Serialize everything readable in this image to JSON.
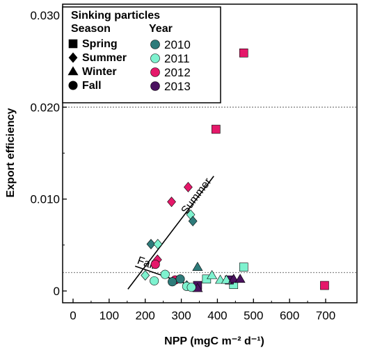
{
  "chart_data": {
    "type": "scatter",
    "xlabel": "NPP (mgC m⁻² d⁻¹)",
    "ylabel": "Export efficiency",
    "xlim": [
      0,
      750
    ],
    "ylim": [
      0,
      0.031
    ],
    "x_ticks": [
      0,
      100,
      200,
      300,
      400,
      500,
      600,
      700
    ],
    "y_ticks": [
      0,
      0.01,
      0.02,
      0.03
    ],
    "x_tick_labels": [
      "0",
      "100",
      "200",
      "300",
      "400",
      "500",
      "600",
      "700"
    ],
    "y_tick_labels": [
      "0",
      "0.010",
      "0.020",
      "0.030"
    ],
    "reference_lines": [
      0.02,
      0.002
    ],
    "legend": {
      "title": "Sinking particles",
      "season_header": "Season",
      "year_header": "Year",
      "seasons": [
        {
          "label": "Spring",
          "marker": "square"
        },
        {
          "label": "Summer",
          "marker": "diamond"
        },
        {
          "label": "Winter",
          "marker": "triangle"
        },
        {
          "label": "Fall",
          "marker": "circle"
        }
      ],
      "years": [
        {
          "label": "2010",
          "color": "#2e7b7a"
        },
        {
          "label": "2011",
          "color": "#7ef2cf"
        },
        {
          "label": "2012",
          "color": "#e5186a"
        },
        {
          "label": "2013",
          "color": "#4b1260"
        }
      ],
      "placement": "top-left"
    },
    "fit_lines": [
      {
        "label": "Summer",
        "from": [
          152,
          0.0002
        ],
        "to": [
          390,
          0.0125
        ]
      },
      {
        "label": "Fall",
        "from": [
          172,
          0.0027
        ],
        "to": [
          350,
          0.0003
        ]
      }
    ],
    "points": [
      {
        "x": 473,
        "y": 0.0259,
        "season": "Spring",
        "year": "2012"
      },
      {
        "x": 396,
        "y": 0.0176,
        "season": "Spring",
        "year": "2012"
      },
      {
        "x": 697,
        "y": 0.0006,
        "season": "Spring",
        "year": "2012"
      },
      {
        "x": 473,
        "y": 0.0026,
        "season": "Spring",
        "year": "2011"
      },
      {
        "x": 370,
        "y": 0.0013,
        "season": "Spring",
        "year": "2011"
      },
      {
        "x": 445,
        "y": 0.0007,
        "season": "Spring",
        "year": "2011"
      },
      {
        "x": 433,
        "y": 0.0012,
        "season": "Spring",
        "year": "2013"
      },
      {
        "x": 345,
        "y": 0.0006,
        "season": "Spring",
        "year": "2013"
      },
      {
        "x": 319,
        "y": 0.0113,
        "season": "Summer",
        "year": "2012"
      },
      {
        "x": 273,
        "y": 0.0097,
        "season": "Summer",
        "year": "2012"
      },
      {
        "x": 234,
        "y": 0.0034,
        "season": "Summer",
        "year": "2012"
      },
      {
        "x": 326,
        "y": 0.0083,
        "season": "Summer",
        "year": "2011"
      },
      {
        "x": 332,
        "y": 0.0076,
        "season": "Summer",
        "year": "2010"
      },
      {
        "x": 216,
        "y": 0.0051,
        "season": "Summer",
        "year": "2010"
      },
      {
        "x": 235,
        "y": 0.0051,
        "season": "Summer",
        "year": "2011"
      },
      {
        "x": 200,
        "y": 0.0017,
        "season": "Summer",
        "year": "2011"
      },
      {
        "x": 315,
        "y": 0.0006,
        "season": "Summer",
        "year": "2010"
      },
      {
        "x": 345,
        "y": 0.0026,
        "season": "Winter",
        "year": "2010"
      },
      {
        "x": 385,
        "y": 0.0017,
        "season": "Winter",
        "year": "2011"
      },
      {
        "x": 408,
        "y": 0.0012,
        "season": "Winter",
        "year": "2011"
      },
      {
        "x": 425,
        "y": 0.0012,
        "season": "Winter",
        "year": "2011"
      },
      {
        "x": 445,
        "y": 0.0013,
        "season": "Winter",
        "year": "2013"
      },
      {
        "x": 463,
        "y": 0.0013,
        "season": "Winter",
        "year": "2013"
      },
      {
        "x": 345,
        "y": 0.0003,
        "season": "Winter",
        "year": "2013"
      },
      {
        "x": 228,
        "y": 0.0029,
        "season": "Fall",
        "year": "2012"
      },
      {
        "x": 255,
        "y": 0.0018,
        "season": "Fall",
        "year": "2011"
      },
      {
        "x": 225,
        "y": 0.0011,
        "season": "Fall",
        "year": "2011"
      },
      {
        "x": 283,
        "y": 0.0012,
        "season": "Fall",
        "year": "2012"
      },
      {
        "x": 297,
        "y": 0.0013,
        "season": "Fall",
        "year": "2010"
      },
      {
        "x": 275,
        "y": 0.001,
        "season": "Fall",
        "year": "2010"
      },
      {
        "x": 315,
        "y": 0.0005,
        "season": "Fall",
        "year": "2011"
      },
      {
        "x": 328,
        "y": 0.0004,
        "season": "Fall",
        "year": "2011"
      }
    ]
  }
}
